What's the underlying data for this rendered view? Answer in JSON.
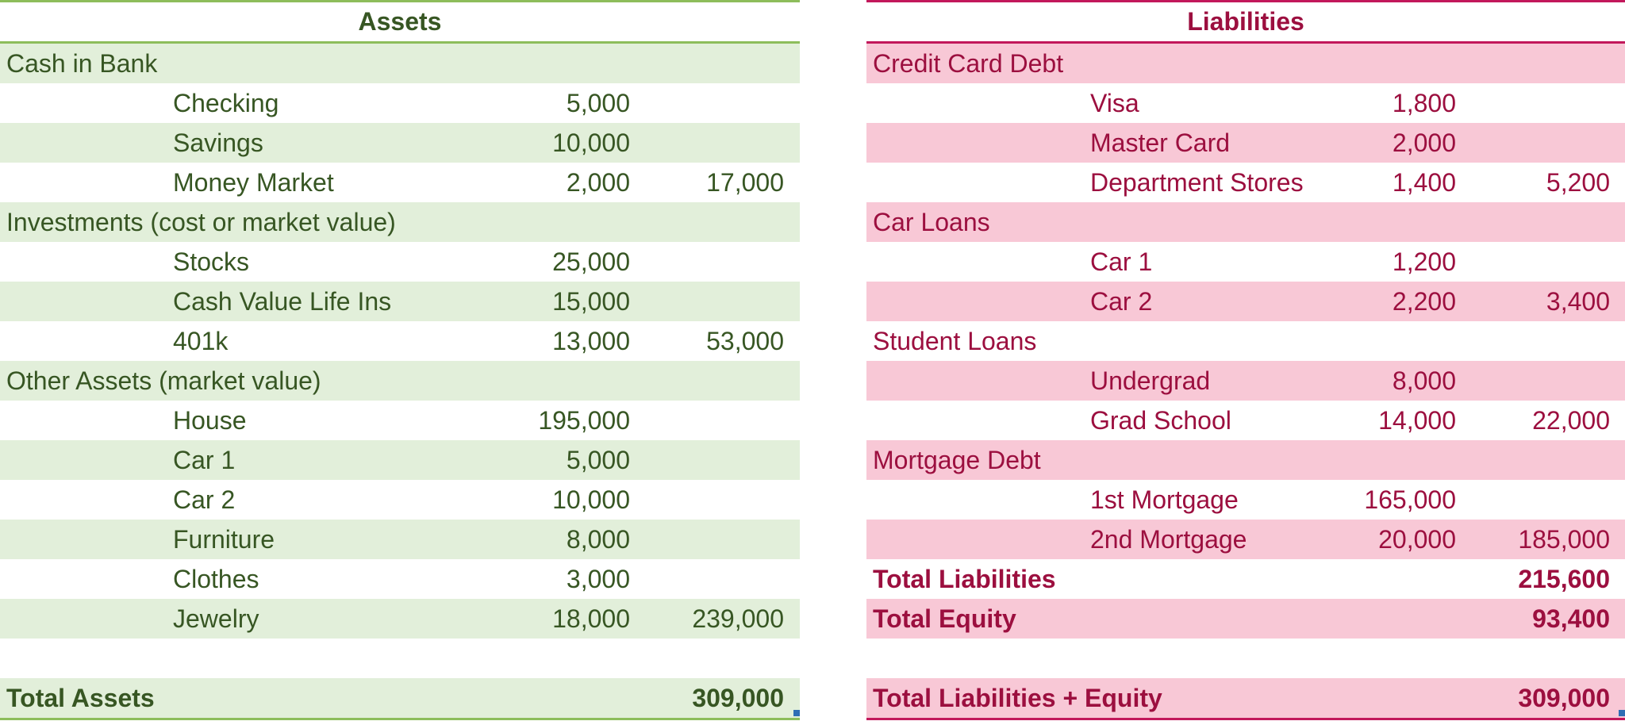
{
  "assets": {
    "title": "Assets",
    "rows": [
      {
        "type": "category",
        "label": "Cash in Bank"
      },
      {
        "type": "item",
        "label": "Checking",
        "amount": "5,000",
        "subtotal": ""
      },
      {
        "type": "item",
        "label": "Savings",
        "amount": "10,000",
        "subtotal": ""
      },
      {
        "type": "item",
        "label": "Money Market",
        "amount": "2,000",
        "subtotal": "17,000"
      },
      {
        "type": "category",
        "label": "Investments (cost or market value)"
      },
      {
        "type": "item",
        "label": "Stocks",
        "amount": "25,000",
        "subtotal": ""
      },
      {
        "type": "item",
        "label": "Cash Value Life Ins",
        "amount": "15,000",
        "subtotal": ""
      },
      {
        "type": "item",
        "label": "401k",
        "amount": "13,000",
        "subtotal": "53,000"
      },
      {
        "type": "category",
        "label": "Other Assets (market value)"
      },
      {
        "type": "item",
        "label": "House",
        "amount": "195,000",
        "subtotal": ""
      },
      {
        "type": "item",
        "label": "Car 1",
        "amount": "5,000",
        "subtotal": ""
      },
      {
        "type": "item",
        "label": "Car 2",
        "amount": "10,000",
        "subtotal": ""
      },
      {
        "type": "item",
        "label": "Furniture",
        "amount": "8,000",
        "subtotal": ""
      },
      {
        "type": "item",
        "label": "Clothes",
        "amount": "3,000",
        "subtotal": ""
      },
      {
        "type": "item",
        "label": "Jewelry",
        "amount": "18,000",
        "subtotal": "239,000"
      }
    ],
    "total_label": "Total Assets",
    "total_value": "309,000"
  },
  "liabilities": {
    "title": "Liabilities",
    "rows": [
      {
        "type": "category",
        "label": "Credit Card Debt"
      },
      {
        "type": "item",
        "label": "Visa",
        "amount": "1,800",
        "subtotal": ""
      },
      {
        "type": "item",
        "label": "Master Card",
        "amount": "2,000",
        "subtotal": ""
      },
      {
        "type": "item",
        "label": "Department Stores",
        "amount": "1,400",
        "subtotal": "5,200"
      },
      {
        "type": "category",
        "label": "Car Loans"
      },
      {
        "type": "item",
        "label": "Car 1",
        "amount": "1,200",
        "subtotal": ""
      },
      {
        "type": "item",
        "label": "Car 2",
        "amount": "2,200",
        "subtotal": "3,400"
      },
      {
        "type": "category",
        "label": "Student Loans"
      },
      {
        "type": "item",
        "label": "Undergrad",
        "amount": "8,000",
        "subtotal": ""
      },
      {
        "type": "item",
        "label": "Grad School",
        "amount": "14,000",
        "subtotal": "22,000"
      },
      {
        "type": "category",
        "label": "Mortgage Debt"
      },
      {
        "type": "item",
        "label": "1st Mortgage",
        "amount": "165,000",
        "subtotal": ""
      },
      {
        "type": "item",
        "label": "2nd Mortgage",
        "amount": "20,000",
        "subtotal": "185,000"
      },
      {
        "type": "total",
        "label": "Total Liabilities",
        "subtotal": "215,600"
      },
      {
        "type": "total",
        "label": "Total Equity",
        "subtotal": "93,400"
      }
    ],
    "total_label": "Total Liabilities + Equity",
    "total_value": "309,000"
  },
  "colors": {
    "assets_text": "#375623",
    "assets_band": "#e2efda",
    "assets_rule": "#8dbd5b",
    "liabilities_text": "#9c0f3f",
    "liabilities_band": "#f8c8d6",
    "liabilities_rule": "#c2185b"
  }
}
